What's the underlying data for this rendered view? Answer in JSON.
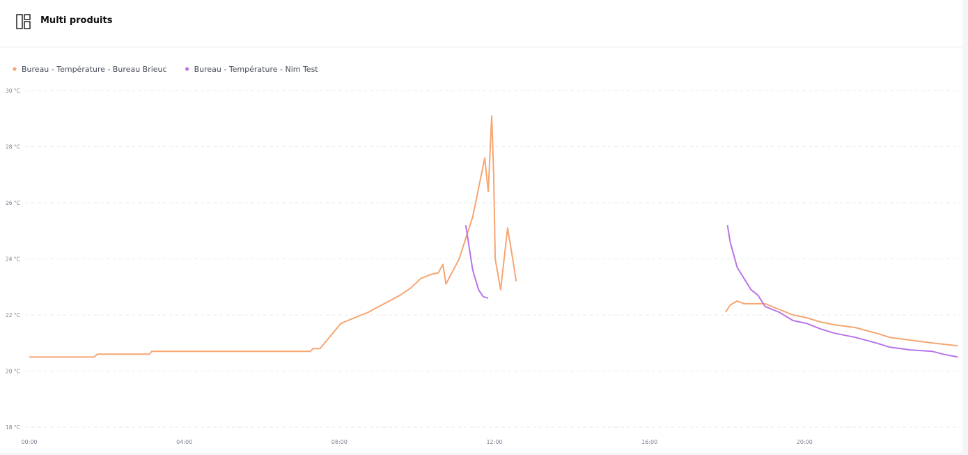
{
  "header": {
    "title": "Multi produits"
  },
  "chart_data": {
    "type": "line",
    "series": [
      {
        "name": "Bureau - Température - Bureau Brieuc",
        "color": "#f7a571",
        "x": [
          0,
          1.67,
          1.76,
          3.1,
          3.16,
          7.25,
          7.32,
          7.5,
          7.68,
          7.86,
          8.04,
          8.22,
          8.48,
          8.75,
          9.02,
          9.29,
          9.56,
          9.83,
          10.1,
          10.37,
          10.55,
          10.67,
          10.75,
          11.09,
          11.44,
          11.75,
          11.84,
          11.93,
          11.98,
          12.02,
          12.16,
          12.34,
          12.47,
          12.56,
          null,
          17.96,
          18.08,
          18.26,
          18.44,
          18.98,
          19.34,
          19.7,
          20.05,
          20.41,
          20.77,
          21.31,
          21.85,
          22.2,
          22.74,
          23.3,
          23.95
        ],
        "values": [
          20.5,
          20.5,
          20.6,
          20.6,
          20.7,
          20.7,
          20.8,
          20.8,
          21.1,
          21.4,
          21.7,
          21.8,
          21.95,
          22.1,
          22.3,
          22.5,
          22.7,
          22.95,
          23.3,
          23.45,
          23.5,
          23.8,
          23.1,
          24.0,
          25.5,
          27.6,
          26.4,
          29.1,
          27.0,
          24.0,
          22.9,
          25.1,
          24.0,
          23.2,
          null,
          22.1,
          22.35,
          22.5,
          22.4,
          22.4,
          22.2,
          22.0,
          21.9,
          21.75,
          21.65,
          21.55,
          21.35,
          21.2,
          21.1,
          21.0,
          20.9
        ]
      },
      {
        "name": "Bureau - Température - Nim Test",
        "color": "#b874e8",
        "x": [
          11.26,
          11.35,
          11.44,
          11.59,
          11.71,
          11.84,
          null,
          18.01,
          18.08,
          18.26,
          18.44,
          18.62,
          18.8,
          18.98,
          19.34,
          19.7,
          20.05,
          20.41,
          20.77,
          21.31,
          21.85,
          22.2,
          22.74,
          23.3,
          23.57,
          23.95
        ],
        "values": [
          25.2,
          24.4,
          23.6,
          22.9,
          22.65,
          22.6,
          null,
          25.2,
          24.6,
          23.7,
          23.3,
          22.9,
          22.7,
          22.3,
          22.1,
          21.8,
          21.7,
          21.5,
          21.35,
          21.2,
          21.0,
          20.85,
          20.75,
          20.7,
          20.6,
          20.5
        ]
      }
    ],
    "xlim": [
      0,
      24
    ],
    "xticks": [
      {
        "value": 0,
        "label": "00:00"
      },
      {
        "value": 4,
        "label": "04:00"
      },
      {
        "value": 8,
        "label": "08:00"
      },
      {
        "value": 12,
        "label": "12:00"
      },
      {
        "value": 16,
        "label": "16:00"
      },
      {
        "value": 20,
        "label": "20:00"
      }
    ],
    "ylim": [
      18,
      30
    ],
    "yticks": [
      {
        "value": 18,
        "label": "18 °C"
      },
      {
        "value": 20,
        "label": "20 °C"
      },
      {
        "value": 22,
        "label": "22 °C"
      },
      {
        "value": 24,
        "label": "24 °C"
      },
      {
        "value": 26,
        "label": "26 °C"
      },
      {
        "value": 28,
        "label": "28 °C"
      },
      {
        "value": 30,
        "label": "30 °C"
      }
    ],
    "grid": true
  }
}
